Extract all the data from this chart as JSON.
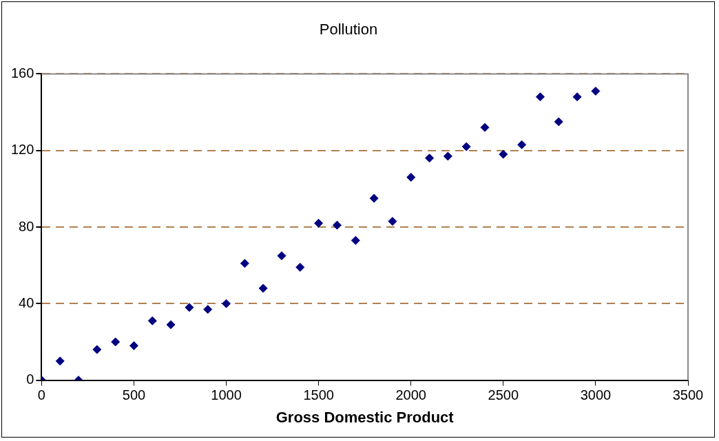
{
  "chart_data": {
    "type": "scatter",
    "title": "Pollution",
    "xlabel": "Gross Domestic Product",
    "x": [
      0,
      100,
      200,
      300,
      400,
      500,
      600,
      700,
      800,
      900,
      1000,
      1100,
      1200,
      1300,
      1400,
      1500,
      1600,
      1700,
      1800,
      1900,
      2000,
      2100,
      2200,
      2300,
      2400,
      2500,
      2600,
      2700,
      2800,
      2900,
      3000
    ],
    "series": [
      {
        "color": "#000080",
        "values": [
          0,
          10,
          0,
          16,
          20,
          18,
          31,
          29,
          38,
          37,
          40,
          61,
          48,
          65,
          59,
          82,
          81,
          73,
          95,
          83,
          106,
          116,
          117,
          122,
          132,
          118,
          123,
          148,
          135,
          148,
          151
        ]
      }
    ],
    "xlim": [
      0,
      3500
    ],
    "xticks": [
      0,
      500,
      1000,
      1500,
      2000,
      2500,
      3000,
      3500
    ],
    "ylim": [
      0,
      160
    ],
    "yticks": [
      0,
      40,
      80,
      120,
      160
    ],
    "grid": "y",
    "marker": "diamond",
    "legend": false
  }
}
